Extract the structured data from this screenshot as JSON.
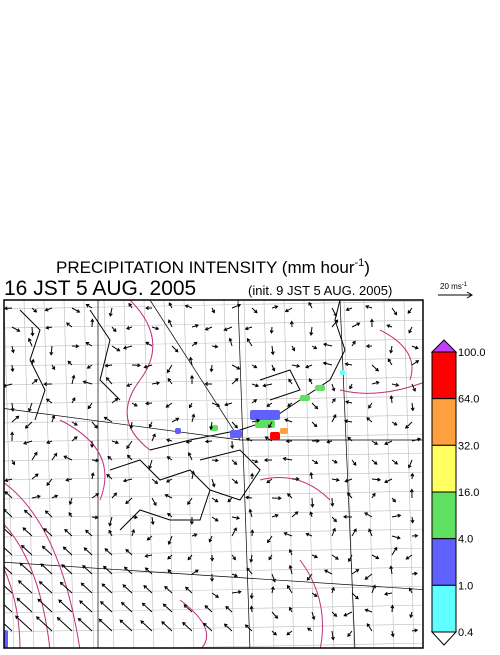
{
  "header": {
    "title": {
      "main": "PRECIPITATION INTENSITY (mm hour",
      "sup": "-1",
      "close": ")"
    },
    "time": "16 JST 5 AUG. 2005",
    "init": "(init. 9 JST 5 AUG. 2005)"
  },
  "vector_legend": {
    "text": "20 ms",
    "sup": "-1"
  },
  "colorbar": {
    "labels": [
      "100.0",
      "64.0",
      "32.0",
      "16.0",
      "4.0",
      "1.0",
      "0.4"
    ],
    "colors": [
      "#ff0000",
      "#ffa040",
      "#ffff60",
      "#60e060",
      "#6060ff",
      "#60ffff"
    ],
    "over_color": "#c040ff",
    "under_color": "#ffffff"
  }
}
